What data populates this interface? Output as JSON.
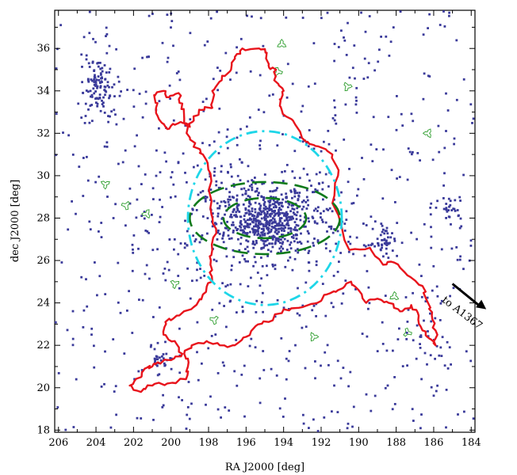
{
  "chart_data": {
    "type": "scatter",
    "xlabel": "RA J2000 [deg]",
    "ylabel": "dec J2000 [deg]",
    "xlim": [
      206.2,
      183.8
    ],
    "ylim": [
      17.9,
      37.8
    ],
    "x_inverted": true,
    "xticks": [
      206,
      204,
      202,
      200,
      198,
      196,
      194,
      192,
      190,
      188,
      186,
      184
    ],
    "yticks": [
      18,
      20,
      22,
      24,
      26,
      28,
      30,
      32,
      34,
      36
    ],
    "grid": false,
    "legend": "none",
    "series": [
      {
        "kind": "points",
        "color": "#3a3a9a",
        "background_seed": 7,
        "background_count": 620,
        "clumps": [
          {
            "ra": 194.9,
            "dec": 27.9,
            "sigma_ra": 1.3,
            "sigma_dec": 0.75,
            "count": 520
          },
          {
            "ra": 195.0,
            "dec": 28.0,
            "sigma_ra": 3.0,
            "sigma_dec": 2.2,
            "count": 260
          },
          {
            "ra": 203.9,
            "dec": 34.6,
            "sigma_ra": 0.45,
            "sigma_dec": 0.55,
            "count": 70
          },
          {
            "ra": 203.5,
            "dec": 33.6,
            "sigma_ra": 0.4,
            "sigma_dec": 0.5,
            "count": 40
          },
          {
            "ra": 188.8,
            "dec": 26.9,
            "sigma_ra": 0.4,
            "sigma_dec": 0.4,
            "count": 45
          },
          {
            "ra": 185.1,
            "dec": 28.4,
            "sigma_ra": 0.3,
            "sigma_dec": 0.3,
            "count": 25
          },
          {
            "ra": 200.5,
            "dec": 21.3,
            "sigma_ra": 0.4,
            "sigma_dec": 0.3,
            "count": 25
          },
          {
            "ra": 186.0,
            "dec": 22.5,
            "sigma_ra": 0.8,
            "sigma_dec": 1.0,
            "count": 25
          }
        ]
      },
      {
        "kind": "contour",
        "color": "#e8141c",
        "points": [
          [
            201.6,
            20.5
          ],
          [
            202.2,
            20.1
          ],
          [
            201.6,
            19.8
          ],
          [
            201.0,
            20.1
          ],
          [
            200.2,
            20.2
          ],
          [
            199.2,
            20.4
          ],
          [
            199.1,
            21.0
          ],
          [
            199.3,
            21.6
          ],
          [
            198.9,
            22.0
          ],
          [
            198.1,
            22.2
          ],
          [
            197.4,
            22.0
          ],
          [
            196.6,
            22.0
          ],
          [
            196.0,
            22.4
          ],
          [
            195.5,
            22.9
          ],
          [
            194.8,
            23.1
          ],
          [
            194.0,
            23.7
          ],
          [
            193.0,
            23.8
          ],
          [
            192.2,
            24.0
          ],
          [
            191.7,
            24.4
          ],
          [
            191.1,
            24.6
          ],
          [
            190.4,
            25.0
          ],
          [
            190.0,
            24.6
          ],
          [
            189.6,
            24.0
          ],
          [
            189.0,
            24.2
          ],
          [
            188.4,
            24.0
          ],
          [
            187.8,
            23.6
          ],
          [
            187.2,
            23.9
          ],
          [
            186.8,
            23.4
          ],
          [
            186.6,
            22.7
          ],
          [
            186.2,
            22.3
          ],
          [
            185.9,
            22.0
          ],
          [
            185.9,
            22.7
          ],
          [
            186.1,
            23.4
          ],
          [
            186.3,
            24.0
          ],
          [
            186.6,
            24.8
          ],
          [
            187.4,
            25.3
          ],
          [
            188.1,
            25.9
          ],
          [
            188.7,
            25.8
          ],
          [
            189.4,
            26.6
          ],
          [
            190.5,
            26.5
          ],
          [
            191.4,
            28.7
          ],
          [
            191.1,
            30.0
          ],
          [
            191.4,
            31.0
          ],
          [
            192.3,
            31.4
          ],
          [
            192.8,
            31.6
          ],
          [
            193.5,
            32.6
          ],
          [
            194.1,
            33.1
          ],
          [
            194.2,
            33.6
          ],
          [
            194.0,
            34.0
          ],
          [
            194.5,
            34.5
          ],
          [
            194.4,
            35.0
          ],
          [
            194.8,
            35.2
          ],
          [
            194.9,
            35.8
          ],
          [
            195.3,
            36.0
          ],
          [
            196.2,
            36.0
          ],
          [
            196.6,
            35.6
          ],
          [
            196.8,
            35.0
          ],
          [
            197.3,
            34.5
          ],
          [
            197.8,
            34.0
          ],
          [
            197.8,
            33.2
          ],
          [
            198.4,
            33.1
          ],
          [
            198.8,
            32.8
          ],
          [
            199.0,
            32.3
          ],
          [
            199.4,
            32.5
          ],
          [
            199.8,
            32.4
          ],
          [
            200.2,
            32.2
          ],
          [
            200.5,
            32.5
          ],
          [
            200.8,
            33.2
          ],
          [
            200.9,
            33.8
          ],
          [
            200.4,
            34.0
          ],
          [
            200.1,
            33.7
          ],
          [
            199.6,
            33.9
          ],
          [
            199.4,
            33.4
          ],
          [
            199.3,
            32.7
          ],
          [
            199.0,
            31.8
          ],
          [
            198.6,
            31.3
          ],
          [
            198.3,
            31.0
          ],
          [
            197.9,
            30.1
          ],
          [
            197.9,
            28.5
          ],
          [
            197.6,
            27.5
          ],
          [
            197.8,
            26.5
          ],
          [
            197.9,
            25.8
          ],
          [
            197.8,
            25.0
          ],
          [
            198.3,
            24.4
          ],
          [
            198.8,
            23.8
          ],
          [
            199.7,
            23.4
          ],
          [
            200.3,
            23.1
          ],
          [
            200.4,
            22.5
          ],
          [
            199.8,
            22.2
          ],
          [
            199.4,
            21.6
          ],
          [
            200.0,
            21.3
          ],
          [
            200.7,
            21.2
          ],
          [
            201.0,
            21.0
          ],
          [
            201.4,
            20.9
          ],
          [
            201.6,
            20.5
          ]
        ]
      },
      {
        "kind": "circle",
        "color": "#1ed6e8",
        "center": [
          195.0,
          28.0
        ],
        "radius_deg": 4.1
      },
      {
        "kind": "ellipses",
        "color": "#0f7a1c",
        "items": [
          {
            "center": [
              195.0,
              28.0
            ],
            "ra_radius": 4.0,
            "dec_radius": 1.7
          },
          {
            "center": [
              195.0,
              28.0
            ],
            "ra_radius": 2.2,
            "dec_radius": 0.95
          }
        ]
      },
      {
        "kind": "minor-contours",
        "color": "#2e9e2e",
        "items": [
          [
            194.1,
            36.2
          ],
          [
            194.3,
            34.9
          ],
          [
            190.6,
            34.2
          ],
          [
            203.5,
            29.6
          ],
          [
            202.4,
            28.6
          ],
          [
            201.3,
            28.2
          ],
          [
            188.1,
            24.3
          ],
          [
            187.4,
            22.6
          ],
          [
            192.4,
            22.4
          ],
          [
            199.8,
            24.9
          ],
          [
            197.7,
            23.2
          ],
          [
            186.3,
            32.0
          ]
        ]
      }
    ],
    "annotation": {
      "text": "to A1367",
      "arrow_from": [
        185.0,
        24.9
      ],
      "arrow_to": [
        183.2,
        23.7
      ]
    }
  }
}
